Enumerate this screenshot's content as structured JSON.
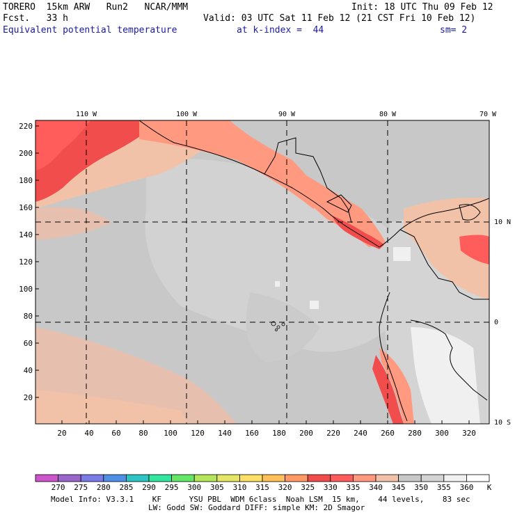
{
  "header": {
    "model": "TORERO  15km ARW   Run2   NCAR/MMM",
    "init": "Init: 18 UTC Thu 09 Feb 12",
    "fcst": "Fcst.   33 h",
    "valid": "Valid: 03 UTC Sat 11 Feb 12 (21 CST Fri 10 Feb 12)",
    "field": "Equivalent potential temperature",
    "kindex": "at k-index =  44",
    "smooth": "sm= 2"
  },
  "map": {
    "lon_labels": [
      "110 W",
      "100 W",
      "90 W",
      "80 W",
      "70 W"
    ],
    "lat_labels": [
      "10 N",
      "0",
      "10 S"
    ],
    "y_ticks": [
      "220",
      "200",
      "180",
      "160",
      "140",
      "120",
      "100",
      "80",
      "60",
      "40",
      "20"
    ],
    "x_ticks": [
      "20",
      "40",
      "60",
      "80",
      "100",
      "120",
      "140",
      "160",
      "180",
      "200",
      "220",
      "240",
      "260",
      "280",
      "300",
      "320"
    ]
  },
  "colorbar": {
    "labels": [
      "270",
      "275",
      "280",
      "285",
      "290",
      "295",
      "300",
      "305",
      "310",
      "315",
      "320",
      "325",
      "330",
      "335",
      "340",
      "345",
      "350",
      "355",
      "360"
    ],
    "unit": "K",
    "colors": [
      "#cc55cc",
      "#9966cc",
      "#7b7be6",
      "#4f8fe6",
      "#2ec4c4",
      "#33e6a0",
      "#66e666",
      "#b3e65a",
      "#e6e666",
      "#ffe066",
      "#ffc05a",
      "#ff9966",
      "#f24d4d",
      "#ff5c5c",
      "#ff9980",
      "#f2c2a8",
      "#c8c8c8",
      "#d4d4d4",
      "#f0f0f0",
      "#ffffff"
    ]
  },
  "footer": {
    "line1": "Model Info: V3.3.1    KF      YSU PBL  WDM 6class  Noah LSM  15 km,    44 levels,    83 sec",
    "line2": "LW: Godd SW: Goddard DIFF: simple KM: 2D Smagor"
  }
}
